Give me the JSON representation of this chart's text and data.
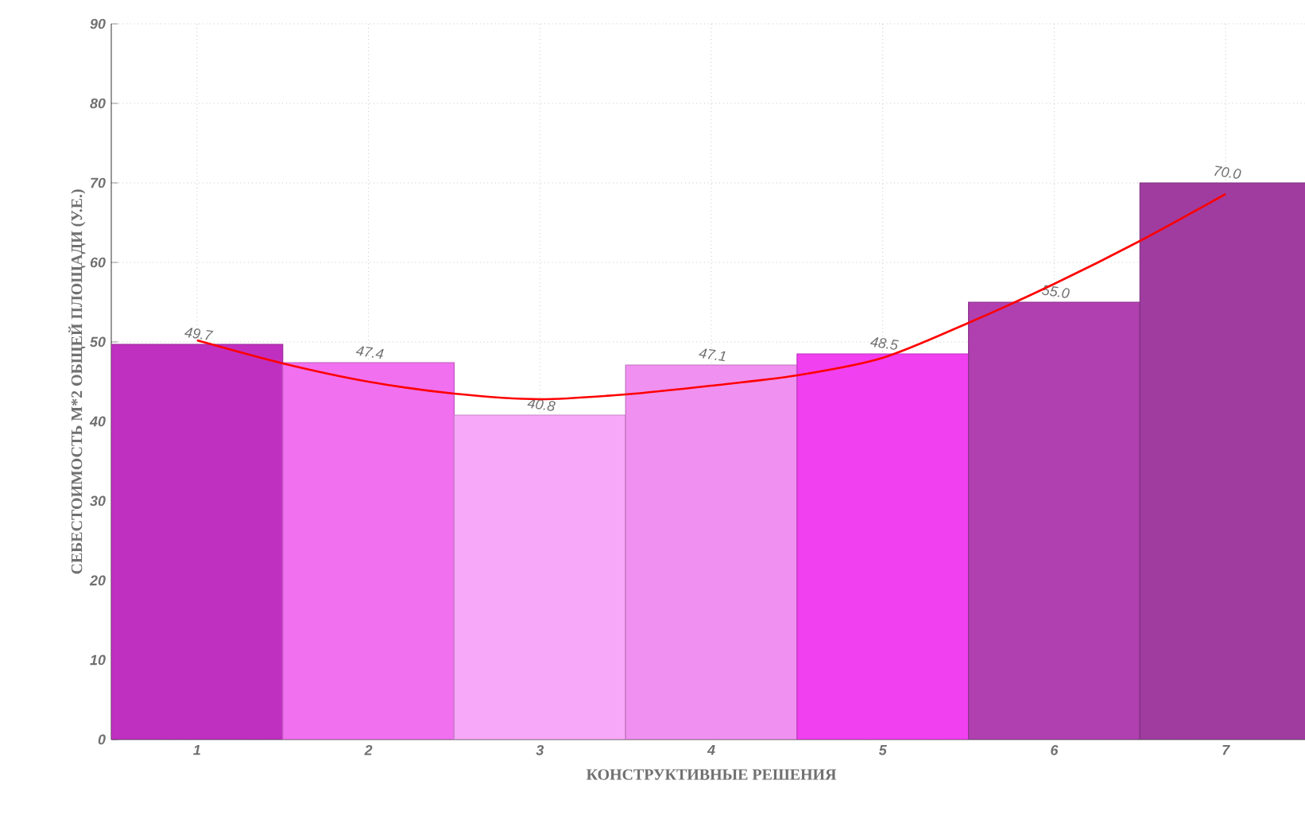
{
  "chart_data": {
    "type": "bar",
    "xlabel": "КОНСТРУКТИВНЫЕ РЕШЕНИЯ",
    "ylabel": "СЕБЕСТОИМОСТЬ М*2 ОБЩЕЙ ПЛОЩАДИ (У.Е.)",
    "x": [
      1,
      2,
      3,
      4,
      5,
      6,
      7
    ],
    "xlim": [
      0.5,
      7.5
    ],
    "xticks": [
      1,
      2,
      3,
      4,
      5,
      6,
      7
    ],
    "ylim": [
      0,
      90
    ],
    "yticks": [
      0,
      10,
      20,
      30,
      40,
      50,
      60,
      70,
      80,
      90
    ],
    "grid": true,
    "series": [
      {
        "values": [
          49.7,
          47.4,
          40.8,
          47.1,
          48.5,
          55.0,
          70.0
        ],
        "value_labels": [
          "49.7",
          "47.4",
          "40.8",
          "47.1",
          "48.5",
          "55.0",
          "70.0"
        ],
        "colors": [
          "#c030c0",
          "#f070f0",
          "#f8a8f8",
          "#f090f0",
          "#f040f0",
          "#b040b0",
          "#a03ca0"
        ]
      },
      {
        "type": "line",
        "color": "#ff0000",
        "x": [
          1,
          1.5,
          2,
          2.5,
          3,
          3.5,
          4,
          4.5,
          5,
          5.5,
          6,
          6.5,
          7
        ],
        "values": [
          50.2,
          47.3,
          45.0,
          43.5,
          42.8,
          43.4,
          44.5,
          45.8,
          48.0,
          52.4,
          57.3,
          62.7,
          68.6
        ]
      }
    ]
  }
}
